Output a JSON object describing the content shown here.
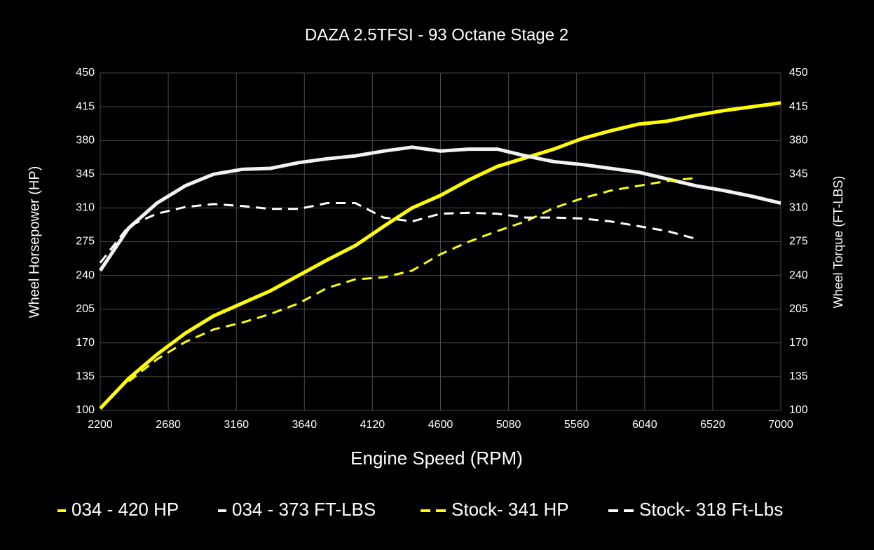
{
  "chart_data": {
    "type": "line",
    "title": "DAZA 2.5TFSI - 93 Octane Stage 2",
    "xlabel": "Engine Speed (RPM)",
    "ylabel": "Wheel Horsepower (HP)",
    "y2label": "Wheel Torque (FT-LBS)",
    "x": [
      2200,
      2400,
      2600,
      2800,
      3000,
      3200,
      3400,
      3600,
      3800,
      4000,
      4200,
      4400,
      4600,
      4800,
      5000,
      5200,
      5400,
      5600,
      5800,
      6000,
      6200,
      6400,
      6600,
      6800,
      7000
    ],
    "xlim": [
      2200,
      7000
    ],
    "xticks": [
      2200,
      2680,
      3160,
      3640,
      4120,
      4600,
      5080,
      5560,
      6040,
      6520,
      7000
    ],
    "ylim": [
      100,
      450
    ],
    "yticks": [
      100,
      135,
      170,
      205,
      240,
      275,
      310,
      345,
      380,
      415,
      450
    ],
    "y2lim": [
      100,
      450
    ],
    "y2ticks": [
      100,
      135,
      170,
      205,
      240,
      275,
      310,
      345,
      380,
      415,
      450
    ],
    "grid": true,
    "legend": "bottom",
    "series": [
      {
        "name": "034 - 420 HP",
        "color": "#ffff00",
        "dash": false,
        "values": [
          102,
          133,
          158,
          180,
          198,
          211,
          224,
          240,
          256,
          271,
          291,
          310,
          323,
          339,
          353,
          362,
          371,
          382,
          390,
          397,
          400,
          406,
          411,
          415,
          419
        ]
      },
      {
        "name": "034 - 373 FT-LBS",
        "color": "#f2f2f2",
        "dash": false,
        "axis": "y2",
        "values": [
          245,
          289,
          315,
          333,
          345,
          350,
          351,
          357,
          361,
          364,
          369,
          373,
          369,
          371,
          371,
          364,
          358,
          355,
          351,
          347,
          340,
          333,
          328,
          322,
          315
        ]
      },
      {
        "name": "Stock- 341 HP",
        "color": "#ffff00",
        "dash": true,
        "values": [
          null,
          130,
          153,
          171,
          184,
          191,
          200,
          211,
          227,
          236,
          238,
          245,
          262,
          275,
          286,
          296,
          310,
          320,
          328,
          333,
          338,
          341,
          null,
          null,
          null
        ]
      },
      {
        "name": "Stock- 318 Ft-Lbs",
        "color": "#ffffff",
        "dash": true,
        "axis": "y2",
        "values": [
          253,
          291,
          304,
          311,
          314,
          312,
          309,
          309,
          315,
          315,
          300,
          296,
          304,
          305,
          304,
          300,
          300,
          299,
          296,
          291,
          286,
          278,
          null,
          null,
          null
        ]
      }
    ]
  }
}
